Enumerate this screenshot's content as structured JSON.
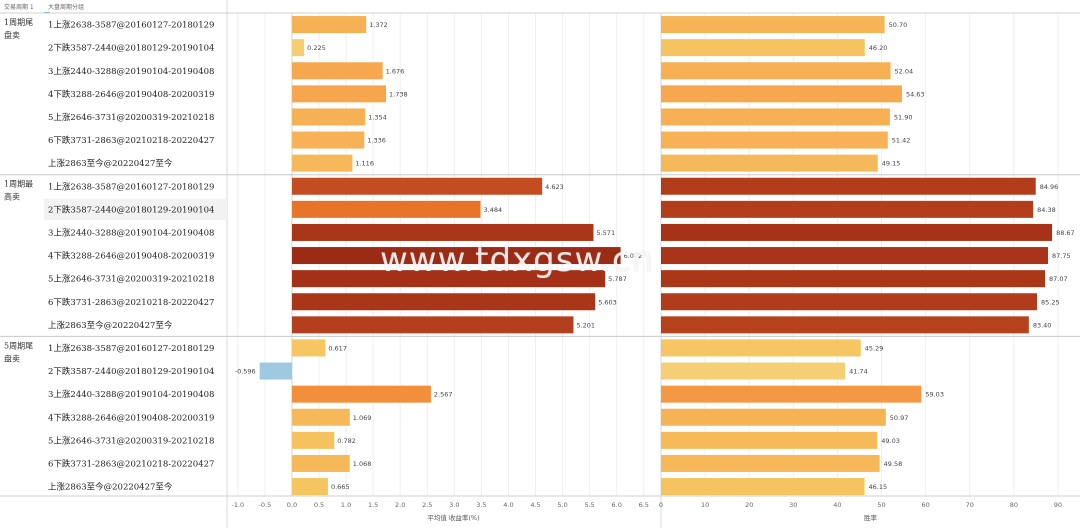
{
  "header": {
    "left_label": "交易周期 1",
    "right_label": "大盘周期分组"
  },
  "watermark": "www.tdxgsw.cn",
  "chart_data": {
    "type": "bar",
    "orientation": "horizontal",
    "groups": [
      {
        "label": "1周期尾盘卖",
        "categories": [
          "1上涨2638-3587@20160127-20180129",
          "2下跌3587-2440@20180129-20190104",
          "3上涨2440-3288@20190104-20190408",
          "4下跌3288-2646@20190408-20200319",
          "5上涨2646-3731@20200319-20210218",
          "6下跌3731-2863@20210218-20220427",
          "上涨2863至今@20220427至今"
        ],
        "avg_return": [
          1.372,
          0.225,
          1.676,
          1.738,
          1.354,
          1.336,
          1.116
        ],
        "avg_return_labels": [
          "1.372",
          "0.225",
          "1.676",
          "1.738",
          "1.354",
          "1.336",
          "1.116"
        ],
        "win_rate": [
          50.7,
          46.2,
          52.04,
          54.63,
          51.9,
          51.42,
          49.15
        ],
        "win_rate_labels": [
          "50.70",
          "46.20",
          "52.04",
          "54.63",
          "51.90",
          "51.42",
          "49.15"
        ]
      },
      {
        "label": "1周期最高卖",
        "categories": [
          "1上涨2638-3587@20160127-20180129",
          "2下跌3587-2440@20180129-20190104",
          "3上涨2440-3288@20190104-20190408",
          "4下跌3288-2646@20190408-20200319",
          "5上涨2646-3731@20200319-20210218",
          "6下跌3731-2863@20210218-20220427",
          "上涨2863至今@20220427至今"
        ],
        "avg_return": [
          4.623,
          3.484,
          5.571,
          6.072,
          5.787,
          5.603,
          5.201
        ],
        "avg_return_labels": [
          "4.623",
          "3.484",
          "5.571",
          "6.072",
          "5.787",
          "5.603",
          "5.201"
        ],
        "win_rate": [
          84.96,
          84.38,
          88.67,
          87.75,
          87.07,
          85.25,
          83.4
        ],
        "win_rate_labels": [
          "84.96",
          "84.38",
          "88.67",
          "87.75",
          "87.07",
          "85.25",
          "83.40"
        ]
      },
      {
        "label": "5周期尾盘卖",
        "categories": [
          "1上涨2638-3587@20160127-20180129",
          "2下跌3587-2440@20180129-20190104",
          "3上涨2440-3288@20190104-20190408",
          "4下跌3288-2646@20190408-20200319",
          "5上涨2646-3731@20200319-20210218",
          "6下跌3731-2863@20210218-20220427",
          "上涨2863至今@20220427至今"
        ],
        "avg_return": [
          0.617,
          -0.596,
          2.567,
          1.069,
          0.782,
          1.068,
          0.665
        ],
        "avg_return_labels": [
          "0.617",
          "-0.596",
          "2.567",
          "1.069",
          "0.782",
          "1.068",
          "0.665"
        ],
        "win_rate": [
          45.29,
          41.74,
          59.03,
          50.97,
          49.03,
          49.58,
          46.15
        ],
        "win_rate_labels": [
          "45.29",
          "41.74",
          "59.03",
          "50.97",
          "49.03",
          "49.58",
          "46.15"
        ]
      }
    ],
    "x_axis_1": {
      "title": "平均值 收益率(%)",
      "range": [
        -1.2,
        6.8
      ],
      "ticks": [
        -1.0,
        -0.5,
        0.0,
        0.5,
        1.0,
        1.5,
        2.0,
        2.5,
        3.0,
        3.5,
        4.0,
        4.5,
        5.0,
        5.5,
        6.0,
        6.5
      ],
      "tick_labels": [
        "-1.0",
        "-0.5",
        "0.0",
        "0.5",
        "1.0",
        "1.5",
        "2.0",
        "2.5",
        "3.0",
        "3.5",
        "4.0",
        "4.5",
        "5.0",
        "5.5",
        "6.0",
        "6.5"
      ]
    },
    "x_axis_2": {
      "title": "胜率",
      "range": [
        0,
        95
      ],
      "ticks": [
        0,
        10,
        20,
        30,
        40,
        50,
        60,
        70,
        80,
        90
      ],
      "tick_labels": [
        "0",
        "10",
        "20",
        "30",
        "40",
        "50",
        "60",
        "70",
        "80",
        "90"
      ]
    },
    "colors": {
      "negative": "#9ecae1",
      "low": "#f2e8c8",
      "high": "#9c2b15"
    },
    "grid": true
  }
}
